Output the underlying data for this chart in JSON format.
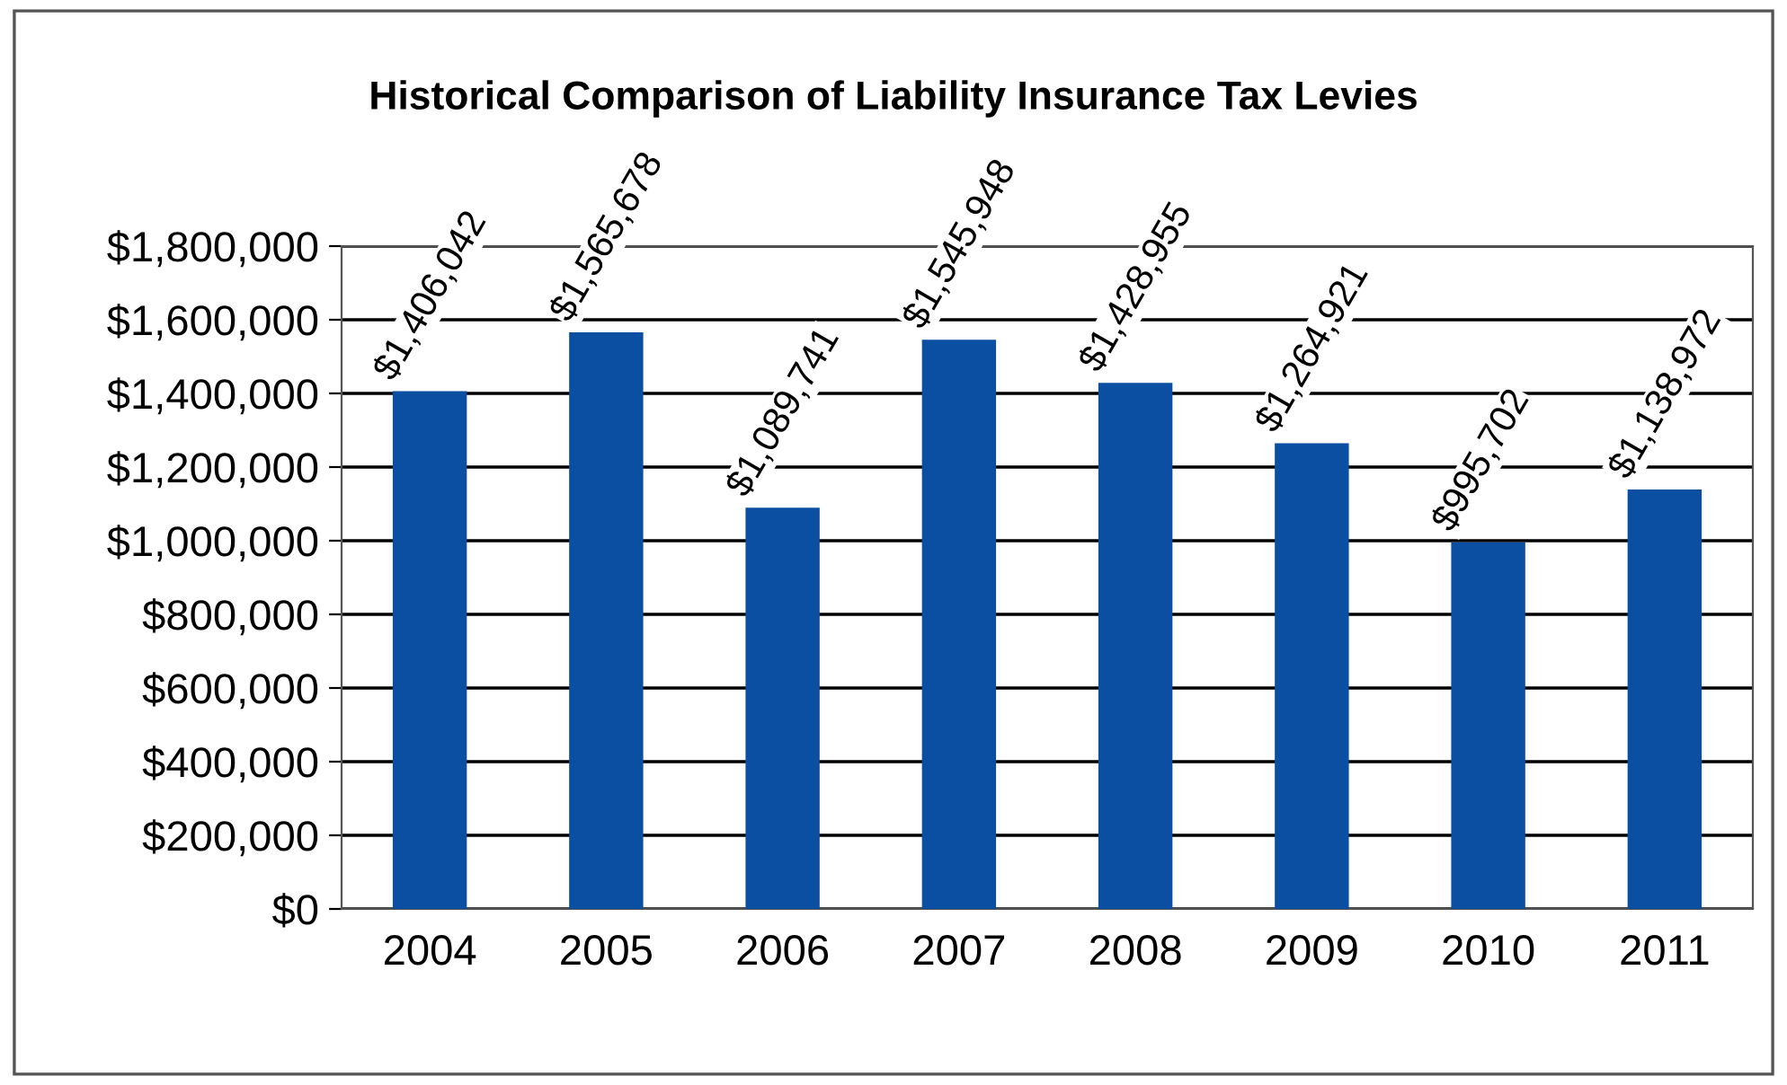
{
  "chart_data": {
    "type": "bar",
    "title": "Historical Comparison of Liability Insurance Tax Levies",
    "categories": [
      "2004",
      "2005",
      "2006",
      "2007",
      "2008",
      "2009",
      "2010",
      "2011"
    ],
    "values": [
      1406042,
      1565678,
      1089741,
      1545948,
      1428955,
      1264921,
      995702,
      1138972
    ],
    "color": "#0b4fa3",
    "value_labels": [
      "$1,406,042",
      "$1,565,678",
      "$1,089,741",
      "$1,545,948",
      "$1,428,955",
      "$1,264,921",
      "$995,702",
      "$1,138,972"
    ],
    "ylim": [
      0,
      1800000
    ],
    "yticks": [
      {
        "value": 0,
        "label": "$0"
      },
      {
        "value": 200000,
        "label": "$200,000"
      },
      {
        "value": 400000,
        "label": "$400,000"
      },
      {
        "value": 600000,
        "label": "$600,000"
      },
      {
        "value": 800000,
        "label": "$800,000"
      },
      {
        "value": 1000000,
        "label": "$1,000,000"
      },
      {
        "value": 1200000,
        "label": "$1,200,000"
      },
      {
        "value": 1400000,
        "label": "$1,400,000"
      },
      {
        "value": 1600000,
        "label": "$1,600,000"
      },
      {
        "value": 1800000,
        "label": "$1,800,000"
      }
    ],
    "grid": "y"
  }
}
